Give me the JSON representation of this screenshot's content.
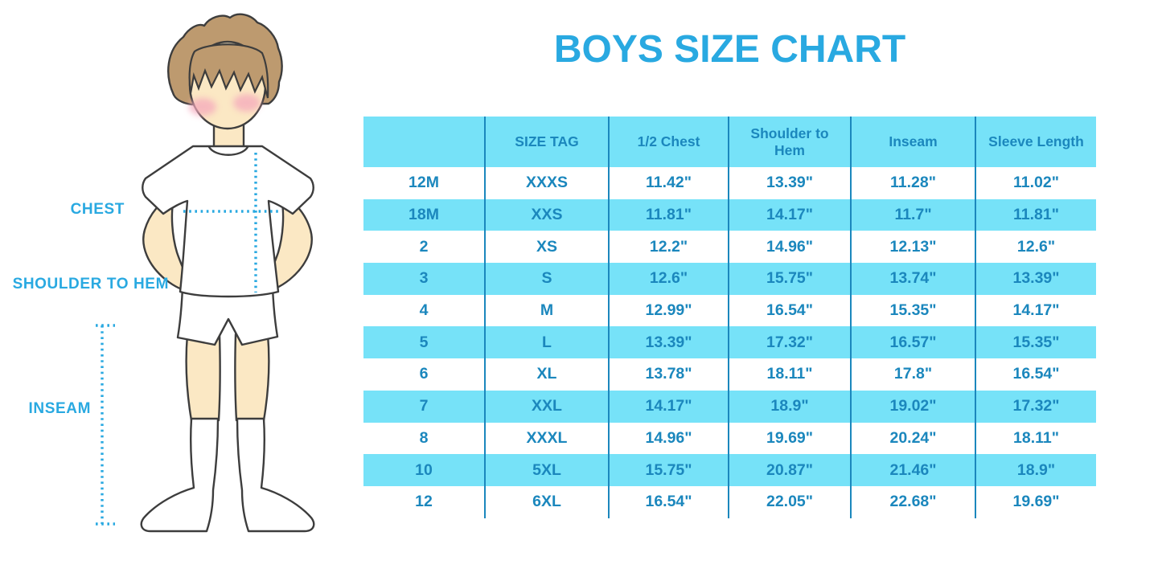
{
  "title": "BOYS SIZE CHART",
  "figure": {
    "chest_label": "CHEST",
    "shoulder_to_hem_label": "SHOULDER TO HEM",
    "inseam_label": "INSEAM"
  },
  "chart_data": {
    "type": "table",
    "title": "BOYS SIZE CHART",
    "columns": [
      "",
      "SIZE TAG",
      "1/2 Chest",
      "Shoulder to Hem",
      "Inseam",
      "Sleeve Length"
    ],
    "rows": [
      [
        "12M",
        "XXXS",
        "11.42\"",
        "13.39\"",
        "11.28\"",
        "11.02\""
      ],
      [
        "18M",
        "XXS",
        "11.81\"",
        "14.17\"",
        "11.7\"",
        "11.81\""
      ],
      [
        "2",
        "XS",
        "12.2\"",
        "14.96\"",
        "12.13\"",
        "12.6\""
      ],
      [
        "3",
        "S",
        "12.6\"",
        "15.75\"",
        "13.74\"",
        "13.39\""
      ],
      [
        "4",
        "M",
        "12.99\"",
        "16.54\"",
        "15.35\"",
        "14.17\""
      ],
      [
        "5",
        "L",
        "13.39\"",
        "17.32\"",
        "16.57\"",
        "15.35\""
      ],
      [
        "6",
        "XL",
        "13.78\"",
        "18.11\"",
        "17.8\"",
        "16.54\""
      ],
      [
        "7",
        "XXL",
        "14.17\"",
        "18.9\"",
        "19.02\"",
        "17.32\""
      ],
      [
        "8",
        "XXXL",
        "14.96\"",
        "19.69\"",
        "20.24\"",
        "18.11\""
      ],
      [
        "10",
        "5XL",
        "15.75\"",
        "20.87\"",
        "21.46\"",
        "18.9\""
      ],
      [
        "12",
        "6XL",
        "16.54\"",
        "22.05\"",
        "22.68\"",
        "19.69\""
      ]
    ],
    "layout": {
      "header_background": "#76E2F8",
      "alternating_row_background": "#76E2F8",
      "grid": "vertical-only"
    }
  },
  "colors": {
    "accent_blue": "#29A9E1",
    "table_text_blue": "#1B87BD",
    "band_cyan": "#76E2F8",
    "skin": "#FBE8C4",
    "hair": "#BD9A6F",
    "cheek_pink": "#F5A9BC"
  }
}
